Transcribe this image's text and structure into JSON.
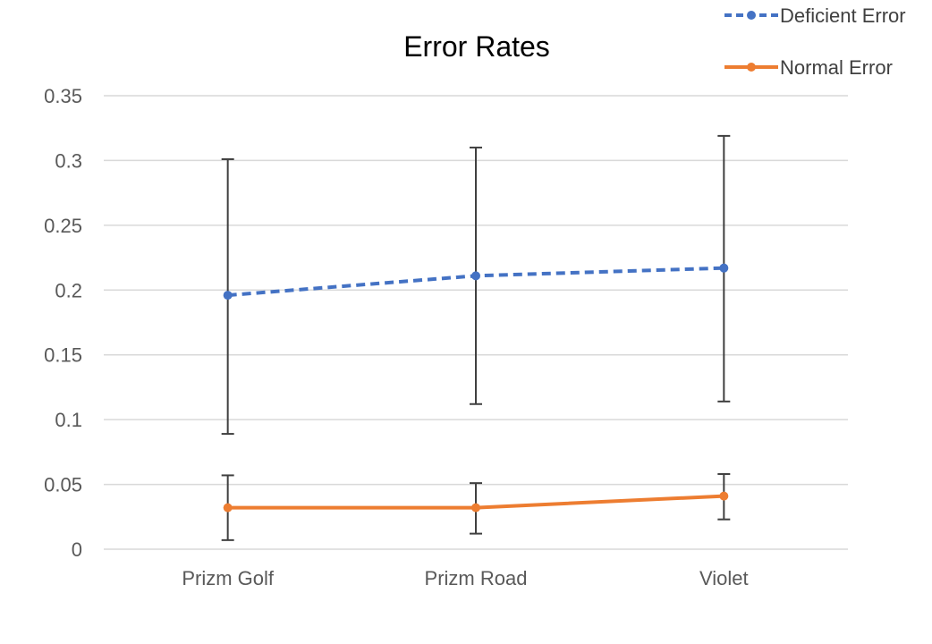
{
  "chart_data": {
    "type": "line",
    "title": "Error Rates",
    "categories": [
      "Prizm Golf",
      "Prizm Road",
      "Violet"
    ],
    "ylim": [
      0,
      0.35
    ],
    "yticks": [
      0,
      0.05,
      0.1,
      0.15,
      0.2,
      0.25,
      0.3,
      0.35
    ],
    "ytick_labels": [
      "0",
      "0.05",
      "0.1",
      "0.15",
      "0.2",
      "0.25",
      "0.3",
      "0.35"
    ],
    "grid": true,
    "legend_position": "top-right",
    "series": [
      {
        "name": "Deficient Error",
        "values": [
          0.196,
          0.211,
          0.217
        ],
        "error_low": [
          0.089,
          0.112,
          0.114
        ],
        "error_high": [
          0.301,
          0.31,
          0.319
        ],
        "color": "#4472c4",
        "dashed": true
      },
      {
        "name": "Normal Error",
        "values": [
          0.032,
          0.032,
          0.041
        ],
        "error_low": [
          0.007,
          0.012,
          0.023
        ],
        "error_high": [
          0.057,
          0.051,
          0.058
        ],
        "color": "#ed7d31",
        "dashed": false
      }
    ]
  }
}
